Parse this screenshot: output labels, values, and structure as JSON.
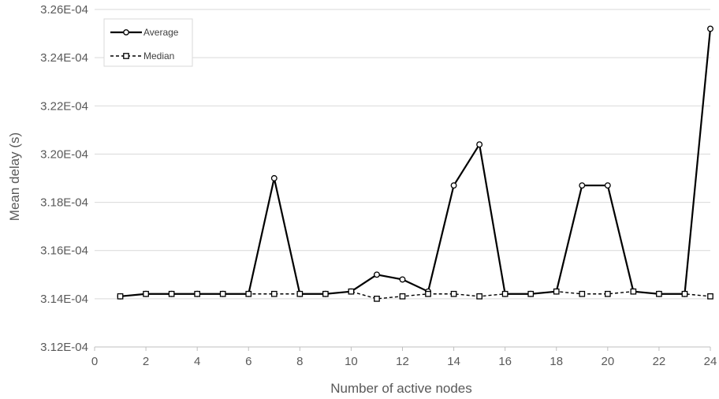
{
  "chart_data": {
    "type": "line",
    "title": "",
    "xlabel": "Number of active nodes",
    "ylabel": "Mean delay (s)",
    "xlim": [
      0,
      24
    ],
    "ylim": [
      0.000312,
      0.000326
    ],
    "xticks": [
      "0",
      "2",
      "4",
      "6",
      "8",
      "10",
      "12",
      "14",
      "16",
      "18",
      "20",
      "22",
      "24"
    ],
    "yticks": [
      "3.12E-04",
      "3.14E-04",
      "3.16E-04",
      "3.18E-04",
      "3.20E-04",
      "3.22E-04",
      "3.24E-04",
      "3.26E-04"
    ],
    "grid": "horizontal",
    "legend_position": "top-left",
    "x": [
      1,
      2,
      3,
      4,
      5,
      6,
      7,
      8,
      9,
      10,
      11,
      12,
      13,
      14,
      15,
      16,
      17,
      18,
      19,
      20,
      21,
      22,
      23,
      24
    ],
    "series": [
      {
        "name": "Average",
        "line_style": "solid",
        "marker": "circle",
        "color": "#000000",
        "values": [
          0.0003141,
          0.0003142,
          0.0003142,
          0.0003142,
          0.0003142,
          0.0003142,
          0.000319,
          0.0003142,
          0.0003142,
          0.0003143,
          0.000315,
          0.0003148,
          0.0003143,
          0.0003187,
          0.0003204,
          0.0003142,
          0.0003142,
          0.0003143,
          0.0003187,
          0.0003187,
          0.0003143,
          0.0003142,
          0.0003142,
          0.0003252
        ]
      },
      {
        "name": "Median",
        "line_style": "dashed",
        "marker": "square",
        "color": "#000000",
        "values": [
          0.0003141,
          0.0003142,
          0.0003142,
          0.0003142,
          0.0003142,
          0.0003142,
          0.0003142,
          0.0003142,
          0.0003142,
          0.0003143,
          0.000314,
          0.0003141,
          0.0003142,
          0.0003142,
          0.0003141,
          0.0003142,
          0.0003142,
          0.0003143,
          0.0003142,
          0.0003142,
          0.0003143,
          0.0003142,
          0.0003142,
          0.0003141
        ]
      }
    ]
  }
}
